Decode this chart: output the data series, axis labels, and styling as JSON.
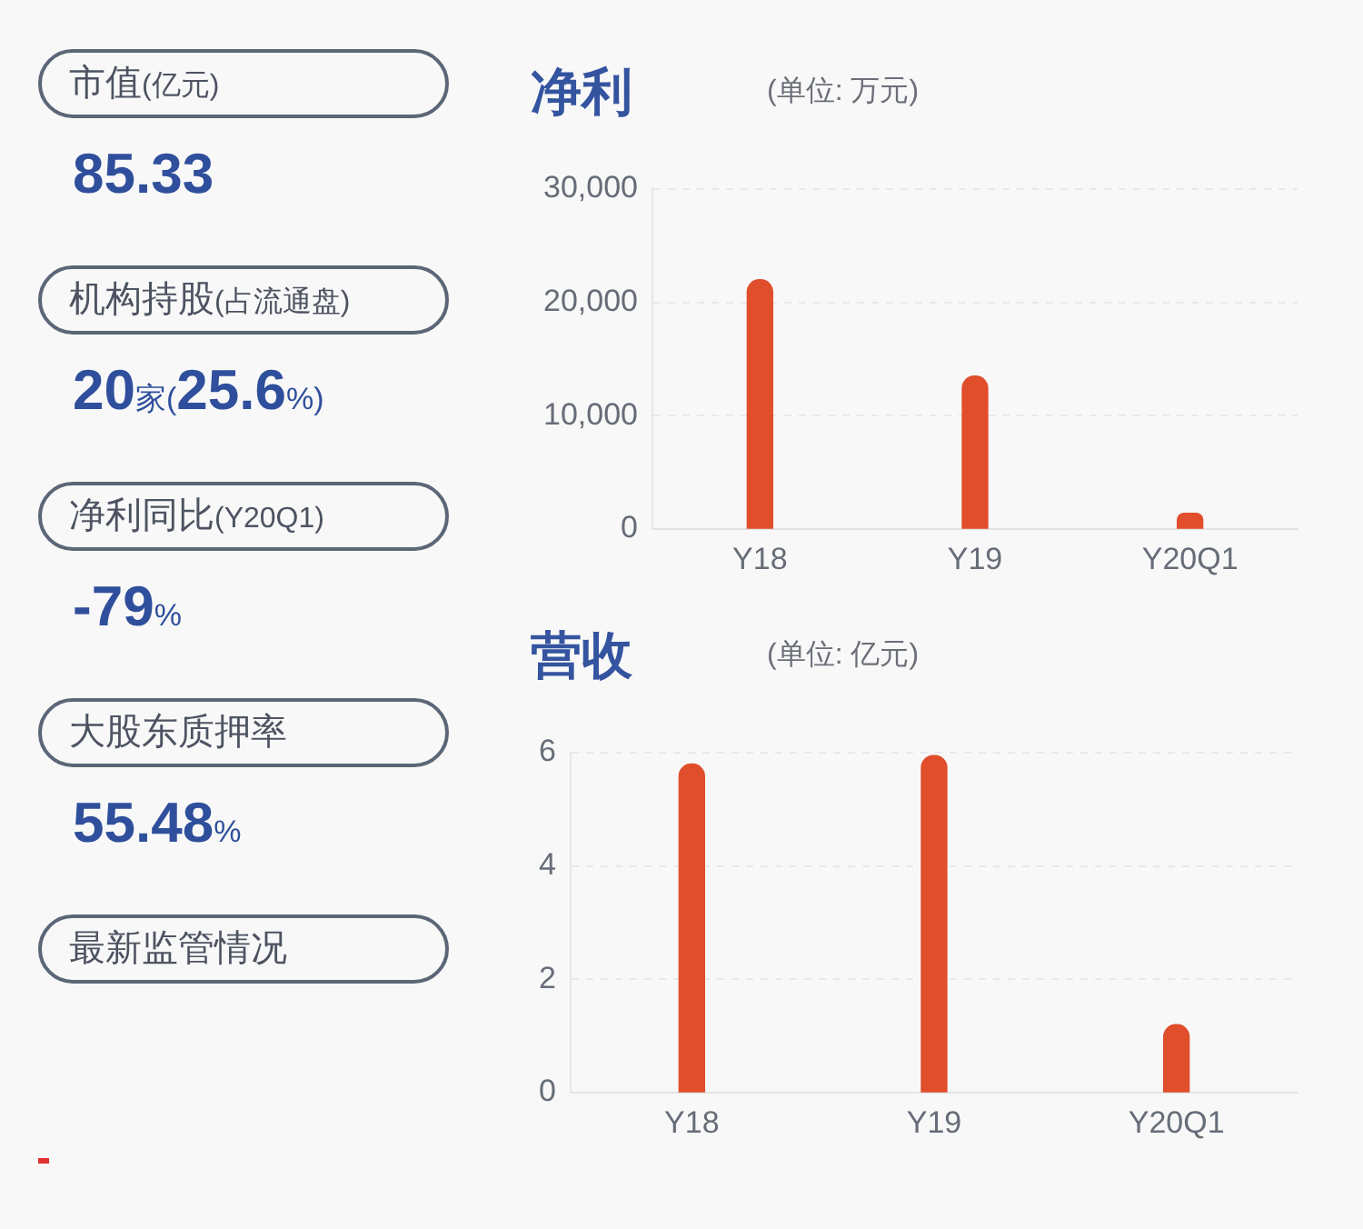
{
  "chart_data": [
    {
      "type": "other",
      "annotations": [
        "市值(亿元)",
        "85.33",
        "机构持股(占流通盘)",
        "20家(25.6%)",
        "净利同比(Y20Q1)",
        "-79%",
        "大股东质押率",
        "55.48%",
        "最新监管情况"
      ]
    },
    {
      "type": "bar",
      "title": "净利",
      "subtitle": "(单位: 万元)",
      "categories": [
        "Y18",
        "Y19",
        "Y20Q1"
      ],
      "values": [
        22000,
        13500,
        1400
      ],
      "color": "#e04e2c",
      "ylim": [
        0,
        30000
      ],
      "yticks": [
        0,
        {
          "value": 10000,
          "label": "10,000"
        },
        {
          "value": 20000,
          "label": "20,000"
        },
        {
          "value": 30000,
          "label": "30,000"
        }
      ],
      "grid": "y"
    },
    {
      "type": "bar",
      "title": "营收",
      "subtitle": "(单位: 亿元)",
      "categories": [
        "Y18",
        "Y19",
        "Y20Q1"
      ],
      "values": [
        5.8,
        5.95,
        1.2
      ],
      "color": "#e04e2c",
      "ylim": [
        0,
        6
      ],
      "yticks": [
        0,
        2,
        4,
        6
      ],
      "grid": "y"
    }
  ]
}
